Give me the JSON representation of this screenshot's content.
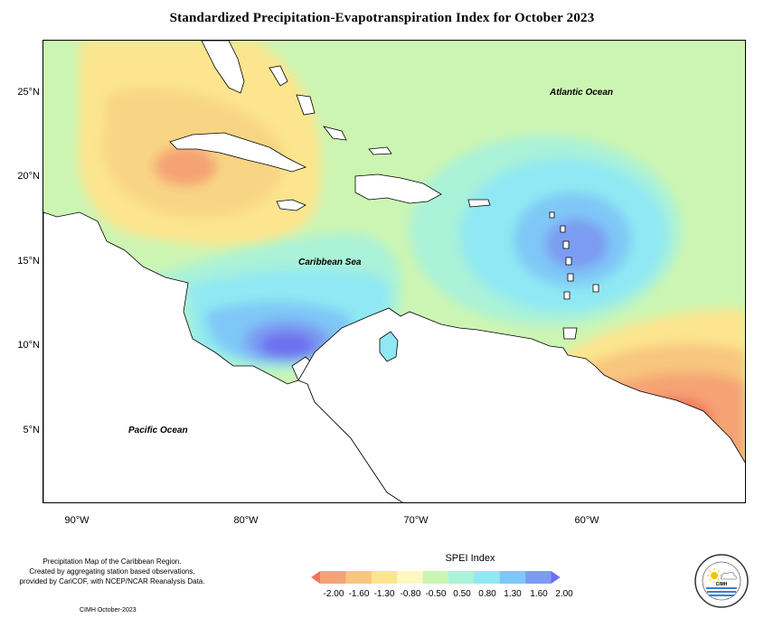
{
  "title": "Standardized Precipitation-Evapotranspiration Index for October 2023",
  "latitude_labels": [
    "25°N",
    "20°N",
    "15°N",
    "10°N",
    "5°N"
  ],
  "longitude_labels": [
    "90°W",
    "80°W",
    "70°W",
    "60°W"
  ],
  "ocean_labels": {
    "atlantic": "Atlantic Ocean",
    "caribbean": "Caribbean Sea",
    "pacific": "Pacific Ocean"
  },
  "credit_lines": [
    "Precipitation Map of the Caribbean Region.",
    "Created by aggregating station based observations,",
    "provided by CariCOF, with NCEP/NCAR Reanalysis Data."
  ],
  "footer": "CIMH October-2023",
  "legend": {
    "title": "SPEI Index",
    "labels": [
      "-2.00",
      "-1.60",
      "-1.30",
      "-0.80",
      "-0.50",
      "0.50",
      "0.80",
      "1.30",
      "1.60",
      "2.00"
    ],
    "colors": [
      "#f2735c",
      "#f5a375",
      "#f8c67e",
      "#fce58e",
      "#fdf7c0",
      "#ccf5b3",
      "#aaf2d8",
      "#8fe8f3",
      "#7fc7f7",
      "#7b9cf1",
      "#6d6ff0"
    ]
  },
  "logo": {
    "ring_text": "CARIBBEAN INSTITUTE FOR METEOROLOGY AND HYDROLOGY",
    "abbr": "CIMH"
  }
}
